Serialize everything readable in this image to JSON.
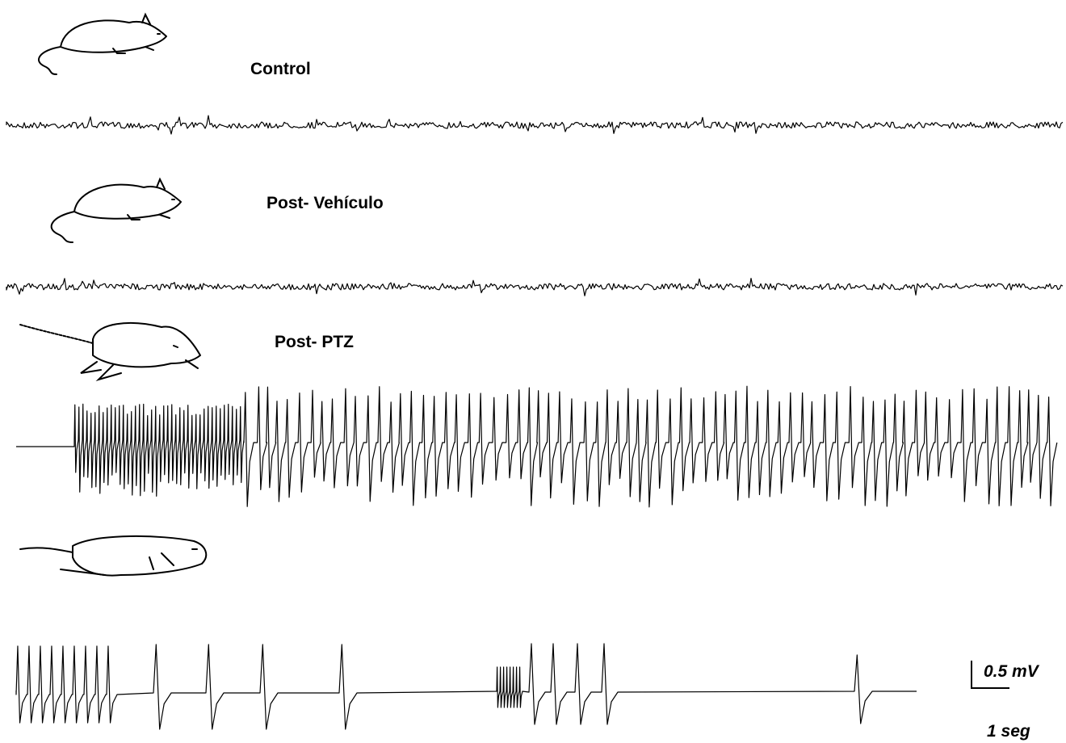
{
  "panels": [
    {
      "label": "Control"
    },
    {
      "label": "Post- Vehículo"
    },
    {
      "label": "Post- PTZ"
    }
  ],
  "scale_bar": {
    "voltage": "0.5 mV",
    "time": "1 seg"
  }
}
